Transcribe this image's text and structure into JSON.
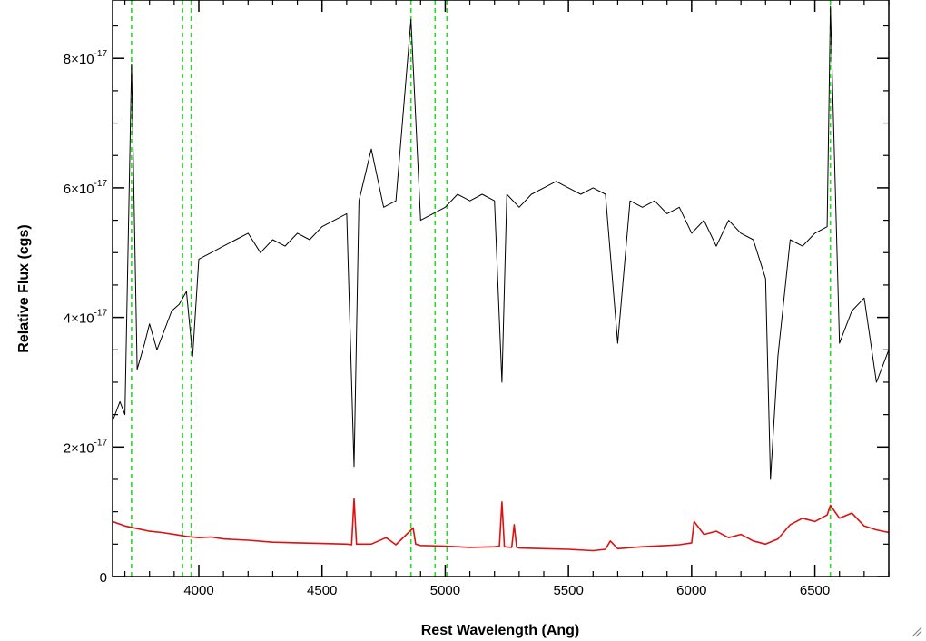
{
  "chart_data": {
    "type": "line",
    "title": "",
    "xlabel": "Rest Wavelength (Ang)",
    "ylabel": "Relative Flux (cgs)",
    "xlim": [
      3650,
      6800
    ],
    "ylim": [
      0,
      8.9e-17
    ],
    "x_ticks": [
      4000,
      4500,
      5000,
      5500,
      6000,
      6500
    ],
    "x_tick_labels": [
      "4000",
      "4500",
      "5000",
      "5500",
      "6000",
      "6500"
    ],
    "y_ticks": [
      0,
      2e-17,
      4e-17,
      6e-17,
      8e-17
    ],
    "y_tick_labels": [
      {
        "mantissa": "0",
        "exponent": ""
      },
      {
        "mantissa": "2×10",
        "exponent": "-17"
      },
      {
        "mantissa": "4×10",
        "exponent": "-17"
      },
      {
        "mantissa": "6×10",
        "exponent": "-17"
      },
      {
        "mantissa": "8×10",
        "exponent": "-17"
      }
    ],
    "grid": false,
    "legend": "none",
    "reference_lines": {
      "color": "#22dd22",
      "style": "dashed",
      "x": [
        3727,
        3934,
        3969,
        4861,
        4959,
        5007,
        6563
      ]
    },
    "series": [
      {
        "color": "#000000",
        "x": [
          3650,
          3680,
          3700,
          3727,
          3750,
          3780,
          3800,
          3830,
          3860,
          3890,
          3920,
          3950,
          3975,
          4000,
          4050,
          4100,
          4150,
          4200,
          4250,
          4300,
          4350,
          4400,
          4450,
          4500,
          4550,
          4600,
          4630,
          4650,
          4700,
          4750,
          4800,
          4861,
          4900,
          4950,
          5000,
          5050,
          5100,
          5150,
          5200,
          5230,
          5250,
          5300,
          5350,
          5400,
          5450,
          5500,
          5550,
          5600,
          5650,
          5700,
          5750,
          5800,
          5850,
          5900,
          5950,
          6000,
          6050,
          6100,
          6150,
          6200,
          6250,
          6300,
          6320,
          6350,
          6400,
          6450,
          6500,
          6550,
          6563,
          6600,
          6650,
          6700,
          6750,
          6800
        ],
        "y": [
          2.4e-17,
          2.7e-17,
          2.5e-17,
          7.9e-17,
          3.2e-17,
          3.6e-17,
          3.9e-17,
          3.5e-17,
          3.8e-17,
          4.1e-17,
          4.2e-17,
          4.4e-17,
          3.4e-17,
          4.9e-17,
          5e-17,
          5.1e-17,
          5.2e-17,
          5.3e-17,
          5e-17,
          5.2e-17,
          5.1e-17,
          5.3e-17,
          5.2e-17,
          5.4e-17,
          5.5e-17,
          5.6e-17,
          1.7e-17,
          5.8e-17,
          6.6e-17,
          5.7e-17,
          5.8e-17,
          8.6e-17,
          5.5e-17,
          5.6e-17,
          5.7e-17,
          5.9e-17,
          5.8e-17,
          5.9e-17,
          5.8e-17,
          3e-17,
          5.9e-17,
          5.7e-17,
          5.9e-17,
          6e-17,
          6.1e-17,
          6e-17,
          5.9e-17,
          6e-17,
          5.9e-17,
          3.6e-17,
          5.8e-17,
          5.7e-17,
          5.8e-17,
          5.6e-17,
          5.7e-17,
          5.3e-17,
          5.5e-17,
          5.1e-17,
          5.5e-17,
          5.3e-17,
          5.2e-17,
          4.6e-17,
          1.5e-17,
          3.4e-17,
          5.2e-17,
          5.1e-17,
          5.3e-17,
          5.4e-17,
          8.8e-17,
          3.6e-17,
          4.1e-17,
          4.3e-17,
          3e-17,
          3.5e-17
        ]
      },
      {
        "color": "#dd1111",
        "x": [
          3650,
          3700,
          3750,
          3800,
          3850,
          3900,
          3950,
          4000,
          4050,
          4100,
          4200,
          4300,
          4400,
          4500,
          4600,
          4620,
          4630,
          4640,
          4700,
          4760,
          4800,
          4870,
          4880,
          4900,
          5000,
          5100,
          5200,
          5220,
          5230,
          5240,
          5270,
          5280,
          5290,
          5300,
          5400,
          5500,
          5600,
          5650,
          5670,
          5700,
          5800,
          5900,
          5950,
          6000,
          6010,
          6050,
          6100,
          6150,
          6200,
          6250,
          6300,
          6350,
          6400,
          6450,
          6500,
          6550,
          6563,
          6600,
          6650,
          6700,
          6750,
          6800
        ],
        "y": [
          8.5e-18,
          7.8e-18,
          7.4e-18,
          7e-18,
          6.8e-18,
          6.5e-18,
          6.2e-18,
          6e-18,
          6.1e-18,
          5.8e-18,
          5.6e-18,
          5.3e-18,
          5.2e-18,
          5.1e-18,
          5e-18,
          4.9e-18,
          1.2e-17,
          5e-18,
          5e-18,
          6e-18,
          4.9e-18,
          7.5e-18,
          5e-18,
          4.8e-18,
          4.7e-18,
          4.5e-18,
          4.6e-18,
          4.7e-18,
          1.15e-17,
          4.6e-18,
          4.5e-18,
          8e-18,
          4.5e-18,
          4.4e-18,
          4.3e-18,
          4.2e-18,
          4e-18,
          4.2e-18,
          5.5e-18,
          4.3e-18,
          4.6e-18,
          4.8e-18,
          4.9e-18,
          5.2e-18,
          8.5e-18,
          6.5e-18,
          7e-18,
          6e-18,
          6.5e-18,
          5.5e-18,
          5e-18,
          5.8e-18,
          8e-18,
          9e-18,
          8.5e-18,
          9.5e-18,
          1.1e-17,
          9e-18,
          9.8e-18,
          7.8e-18,
          7.2e-18,
          6.8e-18
        ]
      }
    ]
  }
}
